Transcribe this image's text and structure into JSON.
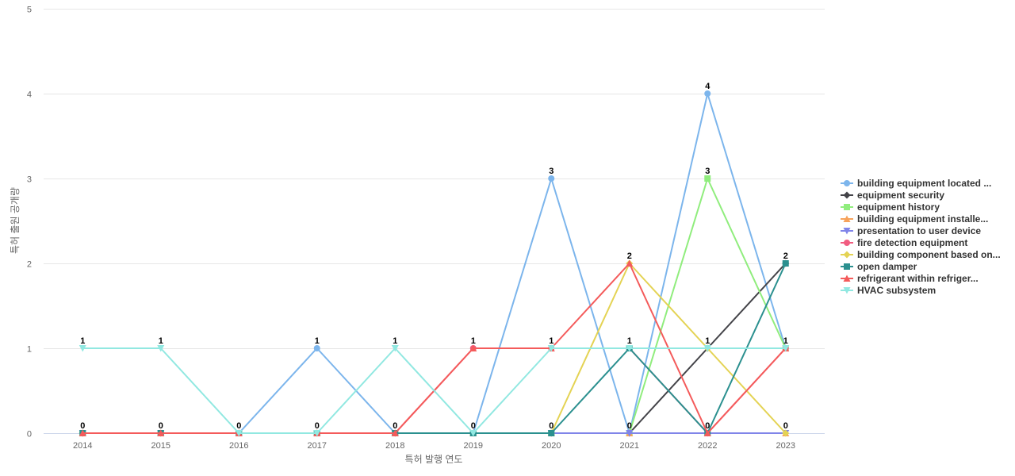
{
  "chart_data": {
    "type": "line",
    "xlabel": "특허 발행 연도",
    "ylabel": "특허 출원 공개량",
    "ylim": [
      0,
      5
    ],
    "yticks": [
      "0",
      "1",
      "2",
      "3",
      "4",
      "5"
    ],
    "categories": [
      "2014",
      "2015",
      "2016",
      "2017",
      "2018",
      "2019",
      "2020",
      "2021",
      "2022",
      "2023"
    ],
    "grid": true,
    "legend_position": "right",
    "series": [
      {
        "name": "building equipment located ...",
        "color": "#7cb5ec",
        "marker": "circle",
        "values": [
          0,
          0,
          0,
          1,
          0,
          0,
          3,
          0,
          4,
          1
        ]
      },
      {
        "name": "equipment security",
        "color": "#434348",
        "marker": "diamond",
        "values": [
          0,
          0,
          0,
          0,
          0,
          0,
          0,
          0,
          1,
          2
        ]
      },
      {
        "name": "equipment history",
        "color": "#90ed7d",
        "marker": "square",
        "values": [
          0,
          0,
          0,
          0,
          0,
          0,
          0,
          0,
          3,
          1
        ]
      },
      {
        "name": "building equipment installe...",
        "color": "#f7a35c",
        "marker": "triangle",
        "values": [
          0,
          0,
          0,
          0,
          0,
          0,
          0,
          0,
          0,
          0
        ]
      },
      {
        "name": "presentation to user device",
        "color": "#8085e9",
        "marker": "triangle-down",
        "values": [
          0,
          0,
          0,
          0,
          0,
          0,
          0,
          0,
          0,
          0
        ]
      },
      {
        "name": "fire detection equipment",
        "color": "#f15c80",
        "marker": "circle",
        "values": [
          0,
          0,
          0,
          0,
          0,
          1,
          1,
          1,
          0,
          1
        ]
      },
      {
        "name": "building component based on...",
        "color": "#e4d354",
        "marker": "diamond",
        "values": [
          0,
          0,
          0,
          0,
          0,
          0,
          0,
          2,
          1,
          0
        ]
      },
      {
        "name": "open damper",
        "color": "#2b908f",
        "marker": "square",
        "values": [
          0,
          0,
          0,
          0,
          0,
          0,
          0,
          1,
          0,
          2
        ]
      },
      {
        "name": "refrigerant within refriger...",
        "color": "#f45b5b",
        "marker": "triangle",
        "values": [
          0,
          0,
          0,
          0,
          0,
          1,
          1,
          2,
          0,
          1
        ]
      },
      {
        "name": "HVAC subsystem",
        "color": "#91e8e1",
        "marker": "triangle-down",
        "values": [
          1,
          1,
          0,
          0,
          1,
          0,
          1,
          1,
          1,
          1
        ]
      }
    ],
    "point_labels": [
      "1",
      "1",
      "0",
      "1",
      "1",
      "1",
      "3",
      "2",
      "4",
      "2"
    ],
    "lower_labels": [
      "0",
      "0",
      "0",
      "0",
      "0",
      "0",
      "0",
      "0",
      "0",
      "0"
    ],
    "lower_label_values": [
      0,
      0,
      null,
      0,
      0,
      0,
      0,
      0,
      0,
      0
    ],
    "extra_labels": [
      {
        "index": 6,
        "text": "1",
        "value": 1
      },
      {
        "index": 7,
        "text": "1",
        "value": 1
      },
      {
        "index": 8,
        "text": "3",
        "value": 3
      },
      {
        "index": 8,
        "text": "1",
        "value": 1
      },
      {
        "index": 9,
        "text": "1",
        "value": 1
      }
    ]
  }
}
